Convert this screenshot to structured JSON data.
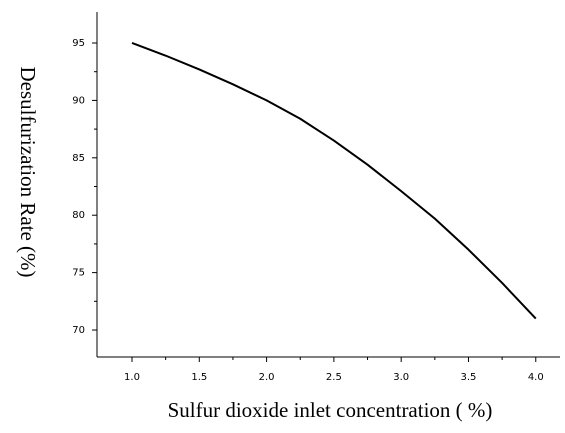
{
  "chart_data": {
    "type": "line",
    "xlabel": "Sulfur dioxide inlet concentration ( %)",
    "ylabel": "Desulfurization Rate (%)",
    "x": [
      1.0,
      1.25,
      1.5,
      1.75,
      2.0,
      2.25,
      2.5,
      2.75,
      3.0,
      3.25,
      3.5,
      3.75,
      4.0
    ],
    "series": [
      {
        "name": "Desulfurization Rate",
        "color": "#000000",
        "values": [
          95,
          93.9,
          92.7,
          91.4,
          90,
          88.4,
          86.5,
          84.4,
          82.1,
          79.7,
          77,
          74.1,
          71
        ]
      }
    ],
    "xlim": [
      0.74,
      4.18
    ],
    "ylim": [
      67.65,
      97.7
    ],
    "xticks": [
      {
        "value": 1,
        "label": "1.0"
      },
      {
        "value": 1.5,
        "label": "1.5"
      },
      {
        "value": 2,
        "label": "2.0"
      },
      {
        "value": 2.5,
        "label": "2.5"
      },
      {
        "value": 3,
        "label": "3.0"
      },
      {
        "value": 3.5,
        "label": "3.5"
      },
      {
        "value": 4,
        "label": "4.0"
      }
    ],
    "yticks": [
      70,
      75,
      80,
      85,
      90,
      95
    ]
  }
}
